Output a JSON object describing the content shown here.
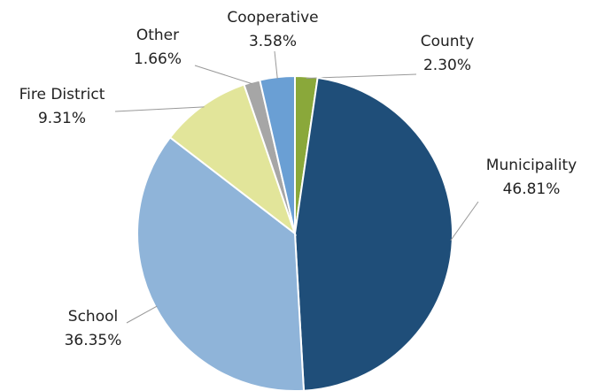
{
  "chart_data": {
    "type": "pie",
    "categories": [
      "County",
      "Municipality",
      "School",
      "Fire District",
      "Other",
      "Cooperative"
    ],
    "values": [
      2.3,
      46.81,
      36.35,
      9.31,
      1.66,
      3.58
    ],
    "value_labels": [
      "2.30%",
      "46.81%",
      "36.35%",
      "9.31%",
      "1.66%",
      "3.58%"
    ],
    "colors": [
      "#8aa83a",
      "#1f4e79",
      "#8fb4d9",
      "#e2e59a",
      "#a6a6a6",
      "#6a9fd4"
    ]
  }
}
